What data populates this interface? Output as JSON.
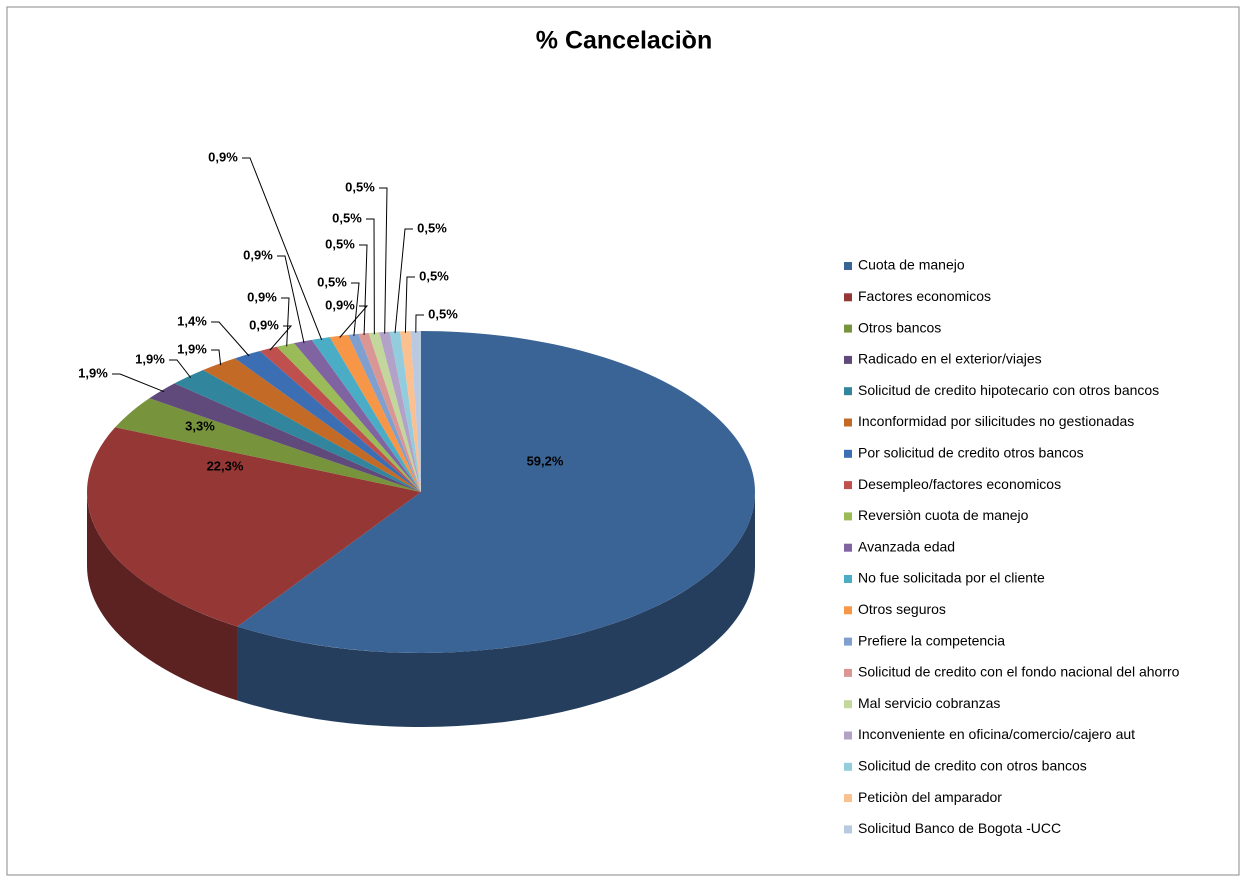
{
  "chart_data": {
    "type": "pie",
    "title": "% Cancelaciòn",
    "categories": [
      "Cuota de manejo",
      "Factores economicos",
      "Otros bancos",
      "Radicado en el exterior/viajes",
      "Solicitud de credito hipotecario con otros bancos",
      "Inconformidad por silicitudes no gestionadas",
      "Por solicitud de credito otros bancos",
      "Desempleo/factores economicos",
      "Reversiòn cuota de manejo",
      "Avanzada edad",
      "No fue solicitada por el cliente",
      "Otros seguros",
      "Prefiere la competencia",
      "Solicitud de credito con el fondo nacional del ahorro",
      "Mal servicio cobranzas",
      "Inconveniente en oficina/comercio/cajero aut",
      "Solicitud de credito con otros bancos",
      "Peticiòn del amparador",
      "Solicitud Banco de Bogota -UCC"
    ],
    "values": [
      59.2,
      22.3,
      3.3,
      1.9,
      1.9,
      1.9,
      1.4,
      0.9,
      0.9,
      0.9,
      0.9,
      0.9,
      0.5,
      0.5,
      0.5,
      0.5,
      0.5,
      0.5,
      0.5
    ],
    "value_labels": [
      "59,2%",
      "22,3%",
      "3,3%",
      "1,9%",
      "1,9%",
      "1,9%",
      "1,4%",
      "0,9%",
      "0,9%",
      "0,9%",
      "0,9%",
      "0,9%",
      "0,5%",
      "0,5%",
      "0,5%",
      "0,5%",
      "0,5%",
      "0,5%",
      "0,5%"
    ],
    "colors": [
      "#3B6496",
      "#953735",
      "#77933C",
      "#5F4A7B",
      "#31859C",
      "#C36A26",
      "#3C6EB4",
      "#C0504D",
      "#9BBB59",
      "#8064A2",
      "#4BACC6",
      "#F79646",
      "#7F9FCF",
      "#D99694",
      "#C3D69B",
      "#B3A2C7",
      "#93CDDD",
      "#FAC090",
      "#B9C9E0"
    ],
    "legend": "right"
  }
}
